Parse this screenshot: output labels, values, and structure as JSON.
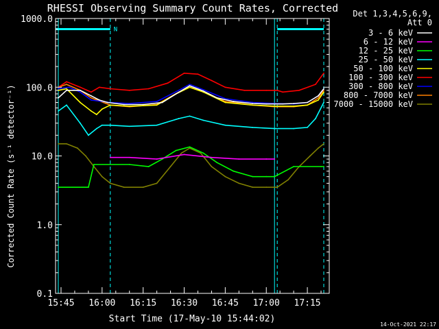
{
  "page": {
    "footer_timestamp": "14-Oct-2021 22:17"
  },
  "colors": {
    "background": "#000000",
    "foreground": "#ffffff",
    "markers": "#00ffff"
  },
  "chart_data": {
    "type": "line",
    "title": "RHESSI Observing Summary Count Rates, Corrected",
    "xlabel": "Start Time (17-May-10 15:44:02)",
    "ylabel": "Corrected Count Rate (s⁻¹ detector⁻¹)",
    "y_scale": "log",
    "ylim": [
      0.1,
      1000
    ],
    "xlim": [
      "15:43",
      "17:23"
    ],
    "x_unit": "time",
    "x_ticks": [
      "15:45",
      "16:00",
      "16:15",
      "16:30",
      "16:45",
      "17:00",
      "17:15"
    ],
    "y_ticks": [
      "0.1",
      "1.0",
      "10.0",
      "100.0",
      "1000.0"
    ],
    "grid": false,
    "legend_position": "right-outside",
    "legend_header": [
      "Det 1,3,4,5,6,9,",
      "Att 0"
    ],
    "annotations": [
      {
        "type": "flag_bar",
        "label": "N",
        "color": "#00ffff",
        "y": 700,
        "x_ranges": [
          [
            "15:43",
            "16:03"
          ],
          [
            "17:04",
            "17:21"
          ]
        ]
      }
    ],
    "vertical_markers": [
      {
        "x": "15:44",
        "color": "#00ffff",
        "style": "solid"
      },
      {
        "x": "16:03",
        "color": "#00ffff",
        "style": "dashed"
      },
      {
        "x": "17:03",
        "color": "#00ffff",
        "style": "solid"
      },
      {
        "x": "17:04",
        "color": "#00ffff",
        "style": "dashed"
      },
      {
        "x": "17:21",
        "color": "#00ffff",
        "style": "dashed"
      }
    ],
    "series": [
      {
        "name": "3 - 6 keV",
        "color": "#ffffff",
        "x": [
          "15:44",
          "15:47",
          "15:52",
          "15:56",
          "15:59",
          "16:02",
          "16:08",
          "16:15",
          "16:22",
          "16:27",
          "16:32",
          "16:37",
          "16:42",
          "16:48",
          "16:55",
          "17:00",
          "17:04",
          "17:06",
          "17:10",
          "17:15",
          "17:19",
          "17:21"
        ],
        "y": [
          70,
          90,
          90,
          75,
          65,
          60,
          56,
          56,
          60,
          80,
          105,
          88,
          70,
          62,
          58,
          57,
          57,
          57,
          58,
          60,
          75,
          95
        ]
      },
      {
        "name": "6 - 12 keV",
        "color": "#ff00ff",
        "x": [
          "16:03",
          "16:10",
          "16:20",
          "16:30",
          "16:40",
          "16:50",
          "17:00",
          "17:03"
        ],
        "y": [
          9.5,
          9.5,
          9.0,
          10.5,
          9.5,
          9.0,
          9.0,
          9.0
        ]
      },
      {
        "name": "12 - 25 keV",
        "color": "#00ff00",
        "x": [
          "15:44",
          "15:55",
          "15:57",
          "16:03",
          "16:10",
          "16:17",
          "16:22",
          "16:27",
          "16:32",
          "16:37",
          "16:42",
          "16:48",
          "16:55",
          "17:00",
          "17:03",
          "17:10",
          "17:20",
          "17:21"
        ],
        "y": [
          3.5,
          3.5,
          7.5,
          7.5,
          7.5,
          7.0,
          9.0,
          12,
          13.5,
          11,
          8.0,
          6.0,
          5.0,
          5.0,
          5.0,
          7.0,
          7.0,
          7.0
        ]
      },
      {
        "name": "25 - 50 keV",
        "color": "#00ffff",
        "x": [
          "15:44",
          "15:47",
          "15:52",
          "15:55",
          "15:58",
          "16:00",
          "16:03",
          "16:10",
          "16:20",
          "16:28",
          "16:32",
          "16:37",
          "16:45",
          "16:55",
          "17:03",
          "17:10",
          "17:15",
          "17:18",
          "17:21"
        ],
        "y": [
          45,
          55,
          30,
          20,
          25,
          28,
          28,
          27,
          28,
          35,
          38,
          33,
          28,
          26,
          25,
          25,
          26,
          35,
          60
        ]
      },
      {
        "name": "50 - 100 keV",
        "color": "#ffff00",
        "x": [
          "15:44",
          "15:47",
          "15:52",
          "15:56",
          "15:58",
          "16:00",
          "16:03",
          "16:10",
          "16:20",
          "16:27",
          "16:32",
          "16:37",
          "16:45",
          "16:55",
          "17:03",
          "17:10",
          "17:15",
          "17:19",
          "17:21"
        ],
        "y": [
          90,
          95,
          60,
          45,
          40,
          48,
          55,
          53,
          55,
          80,
          100,
          85,
          60,
          55,
          53,
          53,
          55,
          65,
          85
        ]
      },
      {
        "name": "100 - 300 keV",
        "color": "#ff0000",
        "x": [
          "15:44",
          "15:47",
          "15:52",
          "15:56",
          "15:59",
          "16:03",
          "16:10",
          "16:17",
          "16:24",
          "16:30",
          "16:35",
          "16:40",
          "16:45",
          "16:52",
          "17:00",
          "17:04",
          "17:06",
          "17:12",
          "17:18",
          "17:21"
        ],
        "y": [
          100,
          120,
          100,
          85,
          100,
          95,
          90,
          95,
          115,
          160,
          155,
          125,
          100,
          90,
          90,
          90,
          85,
          90,
          110,
          160
        ]
      },
      {
        "name": "300 - 800 keV",
        "color": "#0000ff",
        "x": [
          "15:44",
          "15:48",
          "15:52",
          "15:56",
          "16:03",
          "16:10",
          "16:20",
          "16:28",
          "16:32",
          "16:37",
          "16:45",
          "16:55",
          "17:03",
          "17:10",
          "17:15",
          "17:19",
          "17:21"
        ],
        "y": [
          95,
          100,
          85,
          65,
          60,
          58,
          62,
          90,
          110,
          92,
          68,
          60,
          58,
          57,
          60,
          75,
          95
        ]
      },
      {
        "name": "800 - 7000 keV",
        "color": "#ff8000",
        "x": [
          "15:44",
          "15:47",
          "15:52",
          "15:56",
          "16:03",
          "16:10",
          "16:20",
          "16:28",
          "16:32",
          "16:37",
          "16:45",
          "16:55",
          "17:03",
          "17:10",
          "17:15",
          "17:19",
          "17:21"
        ],
        "y": [
          100,
          110,
          90,
          70,
          55,
          52,
          56,
          85,
          100,
          85,
          62,
          55,
          52,
          52,
          55,
          70,
          90
        ]
      },
      {
        "name": "7000 - 15000 keV",
        "color": "#808000",
        "x": [
          "15:44",
          "15:47",
          "15:51",
          "15:54",
          "15:57",
          "16:00",
          "16:03",
          "16:08",
          "16:15",
          "16:20",
          "16:25",
          "16:29",
          "16:32",
          "16:36",
          "16:40",
          "16:45",
          "16:50",
          "16:55",
          "17:00",
          "17:04",
          "17:08",
          "17:12",
          "17:16",
          "17:19",
          "17:21"
        ],
        "y": [
          15,
          15,
          13,
          10,
          7,
          5,
          4,
          3.5,
          3.5,
          4,
          7,
          11,
          13,
          11,
          7,
          5,
          4,
          3.5,
          3.5,
          3.5,
          4.5,
          7,
          10,
          13,
          15
        ]
      }
    ]
  }
}
